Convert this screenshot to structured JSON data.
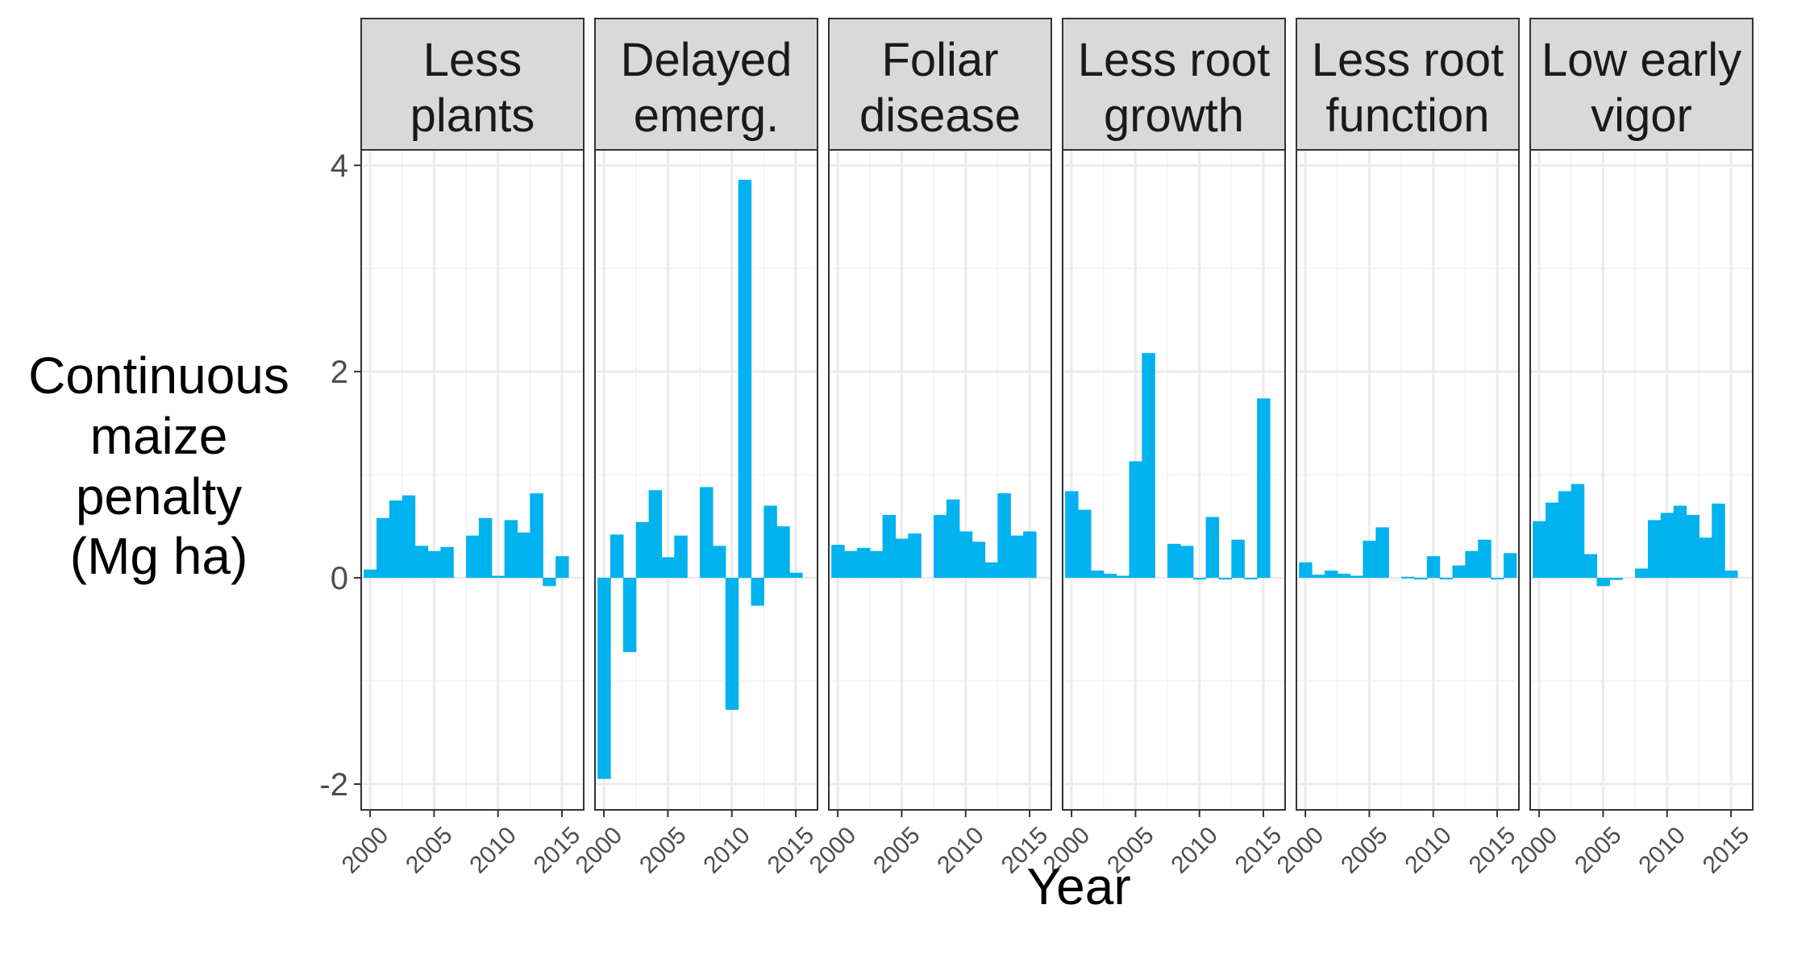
{
  "chart_data": {
    "type": "bar",
    "xlabel": "Year",
    "ylabel_lines": [
      "Continuous",
      "maize",
      "penalty",
      "(Mg ha)"
    ],
    "ylim": [
      -2.25,
      4.15
    ],
    "xlim": [
      1999.3,
      2016.7
    ],
    "yticks": [
      -2,
      0,
      2,
      4
    ],
    "ytick_labels": [
      "-2",
      "0",
      "2",
      "4"
    ],
    "xticks": [
      2000,
      2005,
      2010,
      2015
    ],
    "xtick_labels": [
      "2000",
      "2005",
      "2010",
      "2015"
    ],
    "grid": true,
    "bar_color": "#00B2EE",
    "years": [
      2000,
      2001,
      2002,
      2003,
      2004,
      2005,
      2006,
      2007,
      2008,
      2009,
      2010,
      2011,
      2012,
      2013,
      2014,
      2015,
      2016
    ],
    "panels": [
      {
        "strip_lines": [
          "Less",
          "plants"
        ],
        "values": [
          0.08,
          0.58,
          0.75,
          0.8,
          0.31,
          0.26,
          0.3,
          null,
          0.41,
          0.58,
          0.02,
          0.56,
          0.44,
          0.82,
          -0.08,
          0.21,
          null
        ]
      },
      {
        "strip_lines": [
          "Delayed",
          "emerg."
        ],
        "values": [
          -1.95,
          0.42,
          -0.72,
          0.54,
          0.85,
          0.2,
          0.41,
          null,
          0.88,
          0.31,
          -1.28,
          3.86,
          -0.27,
          0.7,
          0.5,
          0.05,
          null
        ]
      },
      {
        "strip_lines": [
          "Foliar",
          "disease"
        ],
        "values": [
          0.32,
          0.26,
          0.29,
          0.26,
          0.61,
          0.38,
          0.43,
          null,
          0.61,
          0.76,
          0.45,
          0.35,
          0.15,
          0.82,
          0.41,
          0.45,
          null
        ]
      },
      {
        "strip_lines": [
          "Less root",
          "growth"
        ],
        "values": [
          0.84,
          0.66,
          0.07,
          0.04,
          0.02,
          1.13,
          2.18,
          null,
          0.33,
          0.31,
          0.0,
          0.59,
          0.0,
          0.37,
          0.0,
          1.74,
          null
        ]
      },
      {
        "strip_lines": [
          "Less root",
          "function"
        ],
        "values": [
          0.15,
          0.03,
          0.07,
          0.04,
          0.02,
          0.36,
          0.49,
          null,
          0.01,
          0.0,
          0.21,
          0.0,
          0.12,
          0.26,
          0.37,
          0.0,
          0.24
        ]
      },
      {
        "strip_lines": [
          "Low early",
          "vigor"
        ],
        "values": [
          0.55,
          0.73,
          0.84,
          0.91,
          0.23,
          -0.08,
          -0.02,
          null,
          0.09,
          0.56,
          0.63,
          0.7,
          0.61,
          0.39,
          0.72,
          0.07,
          null
        ]
      }
    ]
  }
}
